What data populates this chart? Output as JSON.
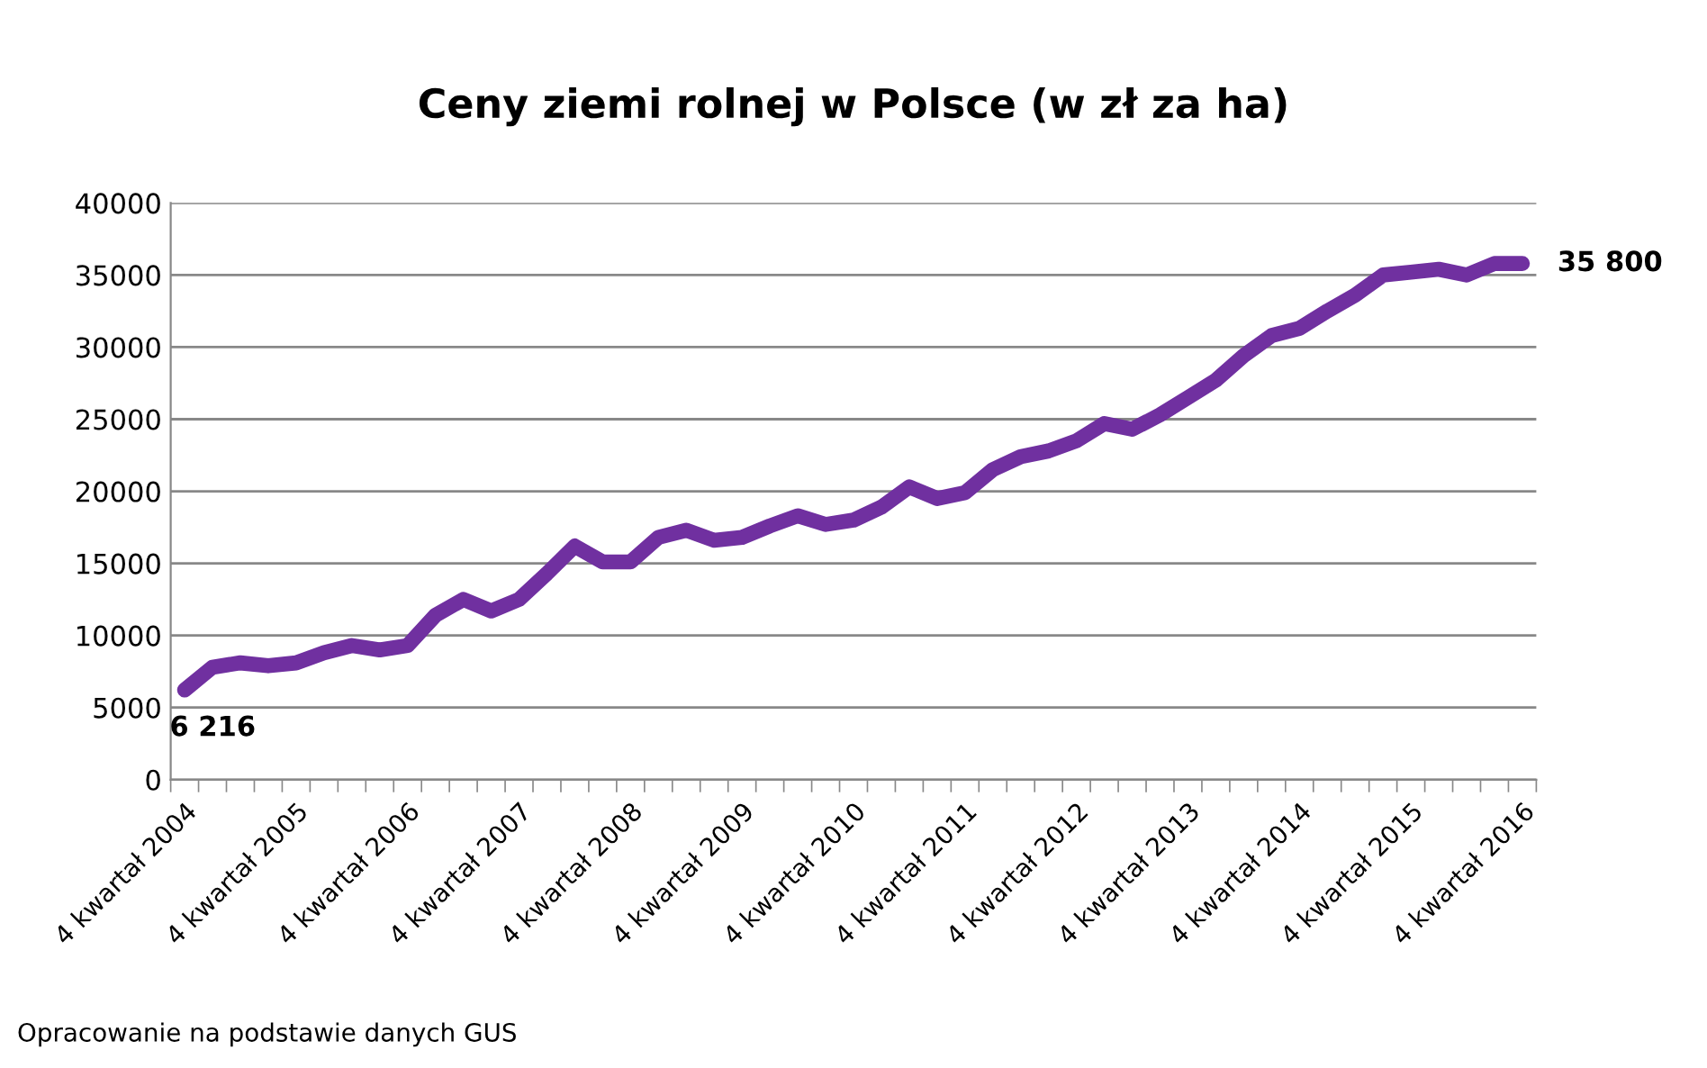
{
  "chart_data": {
    "type": "line",
    "title": "Ceny ziemi rolnej w Polsce (w zł za ha)",
    "categories": [
      "4 kwartał 2004",
      null,
      null,
      null,
      "4 kwartał 2005",
      null,
      null,
      null,
      "4 kwartał 2006",
      null,
      null,
      null,
      "4 kwartał 2007",
      null,
      null,
      null,
      "4 kwartał 2008",
      null,
      null,
      null,
      "4 kwartał 2009",
      null,
      null,
      null,
      "4 kwartał 2010",
      null,
      null,
      null,
      "4 kwartał 2011",
      null,
      null,
      null,
      "4 kwartał 2012",
      null,
      null,
      null,
      "4 kwartał 2013",
      null,
      null,
      null,
      "4 kwartał 2014",
      null,
      null,
      null,
      "4 kwartał 2015",
      null,
      null,
      null,
      "4 kwartał 2016"
    ],
    "series": [
      {
        "color": "#7030a0",
        "values": [
          6216,
          7800,
          8100,
          7900,
          8100,
          8800,
          9300,
          9000,
          9300,
          11400,
          12500,
          11700,
          12500,
          14300,
          16200,
          15100,
          15100,
          16800,
          17300,
          16600,
          16800,
          17600,
          18300,
          17700,
          18000,
          18900,
          20300,
          19500,
          19900,
          21500,
          22400,
          22800,
          23500,
          24700,
          24300,
          25300,
          26500,
          27700,
          29400,
          30800,
          31300,
          32500,
          33600,
          35000,
          35200,
          35400,
          35000,
          35800,
          35800
        ],
        "value_labels": [
          "6 216",
          null,
          null,
          null,
          null,
          null,
          null,
          null,
          null,
          null,
          null,
          null,
          null,
          null,
          null,
          null,
          null,
          null,
          null,
          null,
          null,
          null,
          null,
          null,
          null,
          null,
          null,
          null,
          null,
          null,
          null,
          null,
          null,
          null,
          null,
          null,
          null,
          null,
          null,
          null,
          null,
          null,
          null,
          null,
          null,
          null,
          null,
          null,
          "35 800"
        ]
      }
    ],
    "ylim": [
      0,
      40000
    ],
    "yticks": [
      0,
      5000,
      10000,
      15000,
      20000,
      25000,
      30000,
      35000,
      40000
    ],
    "grid": "y",
    "legend": false,
    "marker": "none",
    "line_style": "solid",
    "annotations": [
      "Opracowanie na podstawie danych GUS"
    ]
  }
}
